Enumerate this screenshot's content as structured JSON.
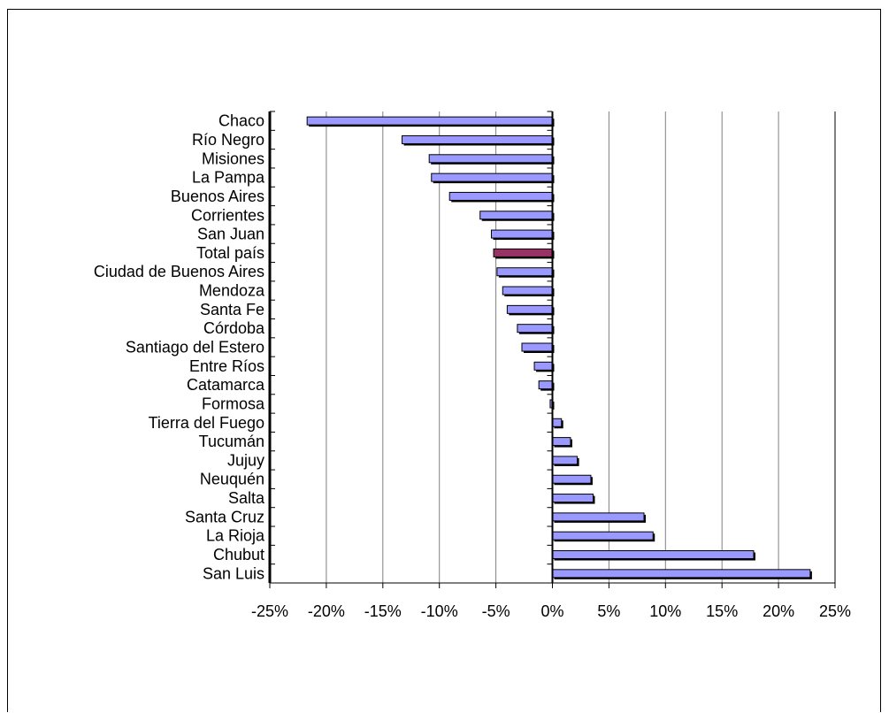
{
  "chart_data": {
    "type": "bar",
    "orientation": "horizontal",
    "title": "",
    "xlabel": "",
    "ylabel": "",
    "xlim": [
      -25,
      25
    ],
    "grid": true,
    "legend": "none",
    "x_ticks": [
      "-25%",
      "-20%",
      "-15%",
      "-10%",
      "-5%",
      "0%",
      "5%",
      "10%",
      "15%",
      "20%",
      "25%"
    ],
    "categories": [
      "Chaco",
      "Río Negro",
      "Misiones",
      "La Pampa",
      "Buenos Aires",
      "Corrientes",
      "San Juan",
      "Total país",
      "Ciudad de Buenos Aires",
      "Mendoza",
      "Santa Fe",
      "Córdoba",
      "Santiago del Estero",
      "Entre Ríos",
      "Catamarca",
      "Formosa",
      "Tierra del Fuego",
      "Tucumán",
      "Jujuy",
      "Neuquén",
      "Salta",
      "Santa Cruz",
      "La Rioja",
      "Chubut",
      "San Luis"
    ],
    "values": [
      -21.7,
      -13.3,
      -10.9,
      -10.7,
      -9.1,
      -6.4,
      -5.4,
      -5.2,
      -4.9,
      -4.4,
      -4.0,
      -3.1,
      -2.7,
      -1.6,
      -1.2,
      -0.2,
      0.8,
      1.6,
      2.2,
      3.4,
      3.6,
      8.1,
      8.9,
      17.8,
      22.8
    ],
    "highlight": "Total país",
    "colors": {
      "bar": "#9999ff",
      "highlight": "#993366",
      "outline": "#000000",
      "grid": "#808080"
    }
  }
}
